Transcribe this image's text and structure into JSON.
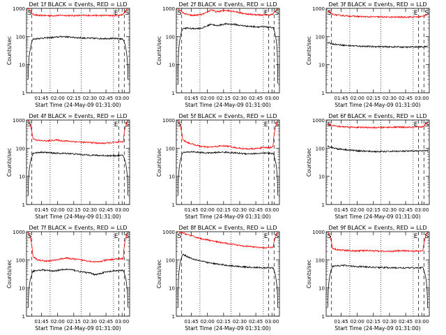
{
  "figure": {
    "xlabel": "Start Time (24-May-09 01:31:00)",
    "ylabel": "Counts/sec"
  },
  "chart_data": [
    {
      "type": "line",
      "title": "Det 1f BLACK = Events, RED = LLD",
      "xlabel": "Start Time (24-May-09 01:31:00)",
      "ylabel": "Counts/sec",
      "yscale": "log",
      "ylim": [
        1,
        1000
      ],
      "x_ticks": [
        "01:45",
        "02:00",
        "02:15",
        "02:30",
        "02:45",
        "03:00"
      ],
      "y_ticks": [
        "1",
        "10",
        "100",
        "1000"
      ],
      "marker_labels": [
        "S",
        "E",
        "S"
      ],
      "series": [
        {
          "name": "LLD",
          "color": "#ff0000",
          "level": 560,
          "values": [
            1000,
            620,
            560,
            560,
            555,
            550,
            560,
            565,
            560,
            555,
            555,
            560,
            560,
            565,
            560,
            555,
            560,
            560,
            555,
            560,
            620,
            1000
          ]
        },
        {
          "name": "Events",
          "color": "#000000",
          "level": 85,
          "values": [
            3,
            80,
            85,
            88,
            90,
            92,
            95,
            100,
            98,
            95,
            92,
            90,
            88,
            87,
            86,
            85,
            85,
            86,
            85,
            84,
            80,
            3
          ]
        }
      ]
    },
    {
      "type": "line",
      "title": "Det 2f BLACK = Events, RED = LLD",
      "xlabel": "Start Time (24-May-09 01:31:00)",
      "ylabel": "Counts/sec",
      "yscale": "log",
      "ylim": [
        1,
        1000
      ],
      "x_ticks": [
        "01:45",
        "02:00",
        "02:15",
        "02:30",
        "02:45",
        "03:00"
      ],
      "y_ticks": [
        "1",
        "10",
        "100",
        "1000"
      ],
      "marker_labels": [
        "S",
        "E",
        "S"
      ],
      "series": [
        {
          "name": "LLD",
          "color": "#ff0000",
          "level": 600,
          "values": [
            1000,
            700,
            600,
            560,
            580,
            600,
            700,
            900,
            750,
            800,
            850,
            820,
            780,
            700,
            650,
            620,
            600,
            590,
            580,
            580,
            620,
            1000
          ]
        },
        {
          "name": "Events",
          "color": "#000000",
          "level": 220,
          "values": [
            2,
            190,
            200,
            190,
            195,
            200,
            230,
            280,
            240,
            260,
            280,
            275,
            270,
            250,
            240,
            230,
            225,
            220,
            220,
            215,
            210,
            2
          ]
        }
      ]
    },
    {
      "type": "line",
      "title": "Det 3f BLACK = Events, RED = LLD",
      "xlabel": "Start Time (24-May-09 01:31:00)",
      "ylabel": "Counts/sec",
      "yscale": "log",
      "ylim": [
        1,
        1000
      ],
      "x_ticks": [
        "01:45",
        "02:00",
        "02:15",
        "02:30",
        "02:45",
        "03:00"
      ],
      "y_ticks": [
        "1",
        "10",
        "100",
        "1000"
      ],
      "marker_labels": [
        "S",
        "E",
        "S"
      ],
      "series": [
        {
          "name": "LLD",
          "color": "#ff0000",
          "level": 500,
          "values": [
            800,
            620,
            580,
            560,
            540,
            530,
            520,
            510,
            505,
            500,
            498,
            495,
            495,
            490,
            488,
            490,
            492,
            495,
            495,
            500,
            520,
            620
          ]
        },
        {
          "name": "Events",
          "color": "#000000",
          "level": 45,
          "values": [
            60,
            55,
            52,
            50,
            48,
            47,
            46,
            45,
            45,
            44,
            44,
            44,
            43,
            43,
            43,
            43,
            42,
            42,
            43,
            43,
            43,
            44
          ]
        }
      ]
    },
    {
      "type": "line",
      "title": "Det 4f BLACK = Events, RED = LLD",
      "xlabel": "Start Time (24-May-09 01:31:00)",
      "ylabel": "Counts/sec",
      "yscale": "log",
      "ylim": [
        1,
        1000
      ],
      "x_ticks": [
        "01:45",
        "02:00",
        "02:15",
        "02:30",
        "02:45",
        "03:00"
      ],
      "y_ticks": [
        "1",
        "10",
        "100",
        "1000"
      ],
      "marker_labels": [
        "S",
        "E",
        "S"
      ],
      "series": [
        {
          "name": "LLD",
          "color": "#ff0000",
          "level": 170,
          "values": [
            1000,
            220,
            190,
            185,
            180,
            190,
            195,
            185,
            180,
            175,
            170,
            165,
            160,
            160,
            155,
            150,
            150,
            155,
            160,
            160,
            170,
            1000
          ]
        },
        {
          "name": "Events",
          "color": "#000000",
          "level": 60,
          "values": [
            2,
            65,
            70,
            72,
            70,
            68,
            66,
            65,
            66,
            64,
            62,
            60,
            58,
            57,
            56,
            55,
            55,
            54,
            54,
            55,
            55,
            2
          ]
        }
      ]
    },
    {
      "type": "line",
      "title": "Det 5f BLACK = Events, RED = LLD",
      "xlabel": "Start Time (24-May-09 01:31:00)",
      "ylabel": "Counts/sec",
      "yscale": "log",
      "ylim": [
        1,
        1000
      ],
      "x_ticks": [
        "01:45",
        "02:00",
        "02:15",
        "02:30",
        "02:45",
        "03:00"
      ],
      "y_ticks": [
        "1",
        "10",
        "100",
        "1000"
      ],
      "marker_labels": [
        "S",
        "E",
        "S"
      ],
      "series": [
        {
          "name": "LLD",
          "color": "#ff0000",
          "level": 110,
          "values": [
            1000,
            200,
            160,
            140,
            125,
            115,
            110,
            110,
            115,
            120,
            120,
            115,
            105,
            100,
            95,
            95,
            95,
            100,
            105,
            105,
            110,
            1000
          ]
        },
        {
          "name": "Events",
          "color": "#000000",
          "level": 70,
          "values": [
            2,
            70,
            72,
            75,
            72,
            70,
            68,
            68,
            70,
            72,
            72,
            70,
            68,
            66,
            64,
            64,
            64,
            65,
            66,
            66,
            66,
            2
          ]
        }
      ]
    },
    {
      "type": "line",
      "title": "Det 6f BLACK = Events, RED = LLD",
      "xlabel": "Start Time (24-May-09 01:31:00)",
      "ylabel": "Counts/sec",
      "yscale": "log",
      "ylim": [
        1,
        1000
      ],
      "x_ticks": [
        "01:45",
        "02:00",
        "02:15",
        "02:30",
        "02:45",
        "03:00"
      ],
      "y_ticks": [
        "1",
        "10",
        "100",
        "1000"
      ],
      "marker_labels": [
        "S",
        "E",
        "S"
      ],
      "series": [
        {
          "name": "LLD",
          "color": "#ff0000",
          "level": 540,
          "values": [
            700,
            650,
            600,
            580,
            570,
            560,
            555,
            550,
            545,
            540,
            540,
            545,
            550,
            555,
            560,
            560,
            555,
            550,
            550,
            560,
            580,
            800
          ]
        },
        {
          "name": "Events",
          "color": "#000000",
          "level": 78,
          "values": [
            120,
            105,
            95,
            92,
            88,
            85,
            82,
            80,
            78,
            77,
            76,
            76,
            76,
            77,
            78,
            78,
            78,
            78,
            80,
            80,
            80,
            82
          ]
        }
      ]
    },
    {
      "type": "line",
      "title": "Det 7f BLACK = Events, RED = LLD",
      "xlabel": "Start Time (24-May-09 01:31:00)",
      "ylabel": "Counts/sec",
      "yscale": "log",
      "ylim": [
        1,
        1000
      ],
      "x_ticks": [
        "01:45",
        "02:00",
        "02:15",
        "02:30",
        "02:45",
        "03:00"
      ],
      "y_ticks": [
        "1",
        "10",
        "100",
        "1000"
      ],
      "marker_labels": [
        "S",
        "E",
        "S"
      ],
      "series": [
        {
          "name": "LLD",
          "color": "#ff0000",
          "level": 100,
          "values": [
            1000,
            130,
            100,
            95,
            90,
            95,
            100,
            110,
            115,
            110,
            105,
            100,
            95,
            90,
            85,
            85,
            95,
            100,
            105,
            110,
            110,
            1000
          ]
        },
        {
          "name": "Events",
          "color": "#000000",
          "level": 45,
          "values": [
            2,
            40,
            42,
            44,
            42,
            40,
            42,
            44,
            46,
            45,
            42,
            38,
            36,
            34,
            30,
            32,
            36,
            38,
            40,
            42,
            42,
            2
          ]
        }
      ]
    },
    {
      "type": "line",
      "title": "Det 8f BLACK = Events, RED = LLD",
      "xlabel": "Start Time (24-May-09 01:31:00)",
      "ylabel": "Counts/sec",
      "yscale": "log",
      "ylim": [
        1,
        1000
      ],
      "x_ticks": [
        "01:45",
        "02:00",
        "02:15",
        "02:30",
        "02:45",
        "03:00"
      ],
      "y_ticks": [
        "1",
        "10",
        "100",
        "1000"
      ],
      "marker_labels": [
        "S",
        "E",
        "S"
      ],
      "series": [
        {
          "name": "LLD",
          "color": "#ff0000",
          "level": 300,
          "values": [
            1000,
            900,
            800,
            700,
            620,
            560,
            520,
            480,
            440,
            410,
            390,
            370,
            350,
            330,
            310,
            300,
            290,
            280,
            270,
            270,
            280,
            1000
          ]
        },
        {
          "name": "Events",
          "color": "#000000",
          "level": 55,
          "values": [
            2,
            160,
            130,
            110,
            100,
            90,
            82,
            76,
            72,
            68,
            65,
            62,
            60,
            58,
            56,
            55,
            54,
            53,
            52,
            52,
            52,
            2
          ]
        }
      ]
    },
    {
      "type": "line",
      "title": "Det 9f BLACK = Events, RED = LLD",
      "xlabel": "Start Time (24-May-09 01:31:00)",
      "ylabel": "Counts/sec",
      "yscale": "log",
      "ylim": [
        1,
        1000
      ],
      "x_ticks": [
        "01:45",
        "02:00",
        "02:15",
        "02:30",
        "02:45",
        "03:00"
      ],
      "y_ticks": [
        "1",
        "10",
        "100",
        "1000"
      ],
      "marker_labels": [
        "S",
        "E",
        "S"
      ],
      "series": [
        {
          "name": "LLD",
          "color": "#ff0000",
          "level": 210,
          "values": [
            1000,
            260,
            230,
            220,
            215,
            210,
            205,
            210,
            215,
            215,
            210,
            205,
            200,
            200,
            205,
            210,
            210,
            208,
            205,
            205,
            210,
            1000
          ]
        },
        {
          "name": "Events",
          "color": "#000000",
          "level": 55,
          "values": [
            2,
            60,
            62,
            64,
            62,
            60,
            58,
            58,
            56,
            55,
            54,
            54,
            53,
            53,
            52,
            52,
            52,
            52,
            52,
            52,
            53,
            2
          ]
        }
      ]
    }
  ]
}
